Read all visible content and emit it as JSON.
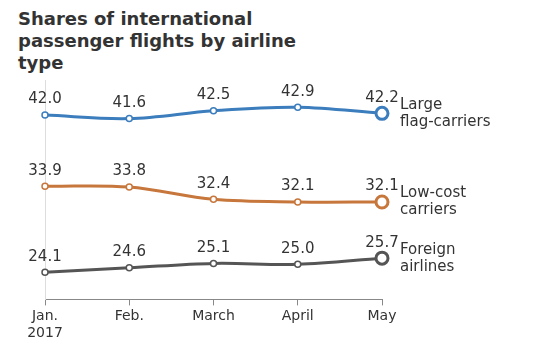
{
  "chart_data": {
    "type": "line",
    "title": "Shares of international passenger flights by airline type",
    "categories": [
      "Jan. 2017",
      "Feb.",
      "March",
      "April",
      "May"
    ],
    "series": [
      {
        "name": "Large flag-carriers",
        "color": "#3b7dbd",
        "marker": "circle",
        "values": [
          42.0,
          41.6,
          42.5,
          42.9,
          42.2
        ],
        "value_labels": [
          "42.0",
          "41.6",
          "42.5",
          "42.9",
          "42.2"
        ]
      },
      {
        "name": "Low-cost carriers",
        "color": "#c7773c",
        "marker": "circle",
        "values": [
          33.9,
          33.8,
          32.4,
          32.1,
          32.1
        ],
        "value_labels": [
          "33.9",
          "33.8",
          "32.4",
          "32.1",
          "32.1"
        ]
      },
      {
        "name": "Foreign airlines",
        "color": "#555555",
        "marker": "circle",
        "values": [
          24.1,
          24.6,
          25.1,
          25.0,
          25.7
        ],
        "value_labels": [
          "24.1",
          "24.6",
          "25.1",
          "25.0",
          "25.7"
        ]
      }
    ],
    "ylim": [
      21,
      46
    ],
    "grid": false,
    "legend": false,
    "data_labels": true,
    "tick_labels": "x"
  }
}
